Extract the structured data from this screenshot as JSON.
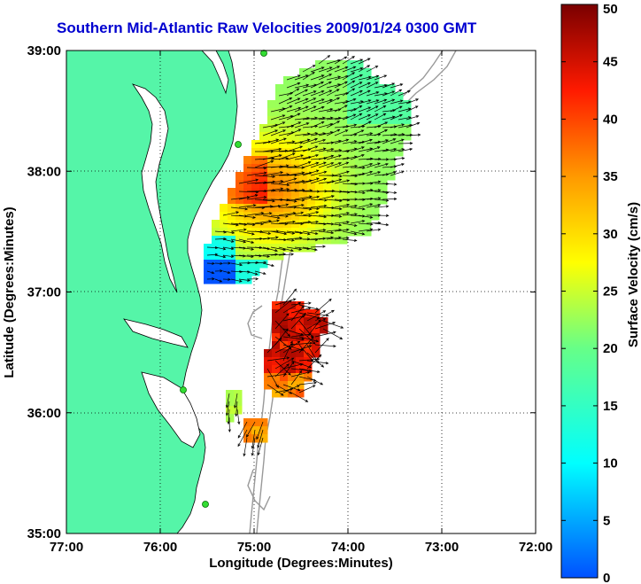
{
  "title": "Southern Mid-Atlantic Raw Velocities 2009/01/24 0300 GMT",
  "x_axis": {
    "label": "Longitude (Degrees:Minutes)",
    "ticks": [
      "77:00",
      "76:00",
      "75:00",
      "74:00",
      "73:00",
      "72:00"
    ],
    "values": [
      -77,
      -76,
      -75,
      -74,
      -73,
      -72
    ]
  },
  "y_axis": {
    "label": "Latitude (Degrees:Minutes)",
    "ticks": [
      "39:00",
      "38:00",
      "37:00",
      "36:00",
      "35:00"
    ],
    "values": [
      39,
      38,
      37,
      36,
      35
    ]
  },
  "colorbar": {
    "label": "Surface Velocity (cm/s)",
    "min": 0,
    "max": 50,
    "ticks": [
      "0",
      "5",
      "10",
      "15",
      "20",
      "25",
      "30",
      "35",
      "40",
      "45",
      "50"
    ],
    "tick_values": [
      0,
      5,
      10,
      15,
      20,
      25,
      30,
      35,
      40,
      45,
      50
    ]
  },
  "colors": {
    "land": "#55f5a8",
    "water": "#ffffff",
    "title": "#0000d0",
    "bathymetry": "#999999",
    "station": "#33dd33"
  },
  "grid": "dotted"
}
